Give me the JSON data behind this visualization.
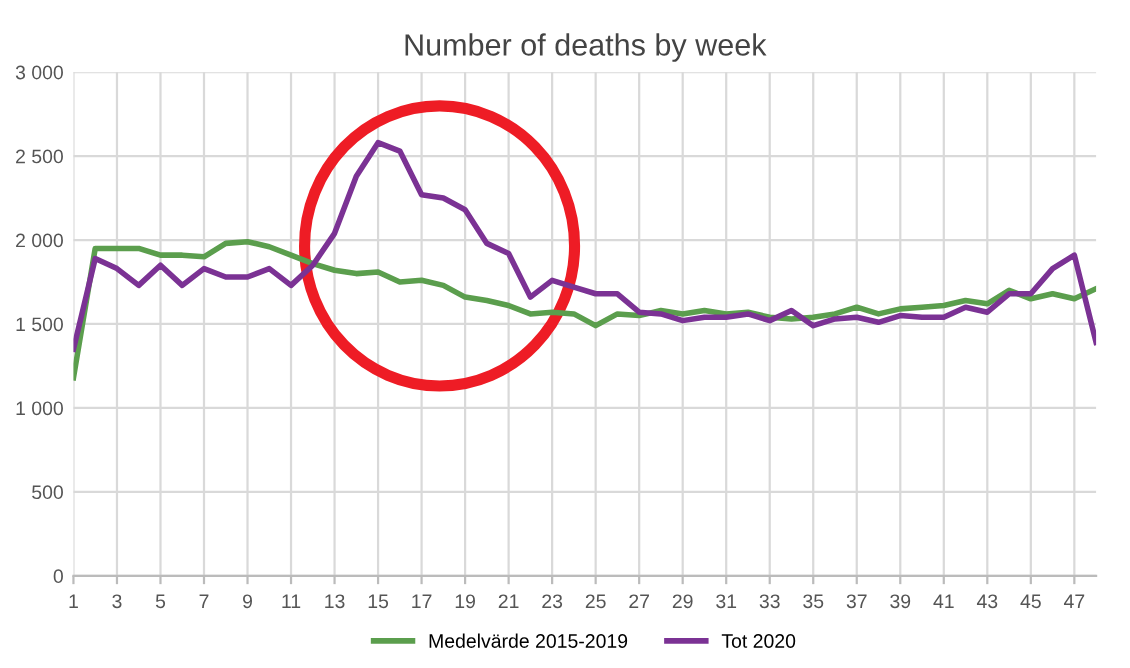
{
  "chart_data": {
    "type": "line",
    "title": "Number of deaths by week",
    "x": [
      1,
      2,
      3,
      4,
      5,
      6,
      7,
      8,
      9,
      10,
      11,
      12,
      13,
      14,
      15,
      16,
      17,
      18,
      19,
      20,
      21,
      22,
      23,
      24,
      25,
      26,
      27,
      28,
      29,
      30,
      31,
      32,
      33,
      34,
      35,
      36,
      37,
      38,
      39,
      40,
      41,
      42,
      43,
      44,
      45,
      46,
      47,
      48
    ],
    "series": [
      {
        "name": "Medelvärde 2015-2019",
        "color": "#5b9e4d",
        "values": [
          1180,
          1950,
          1950,
          1950,
          1910,
          1910,
          1900,
          1980,
          1990,
          1960,
          1910,
          1860,
          1820,
          1800,
          1810,
          1750,
          1760,
          1730,
          1660,
          1640,
          1610,
          1560,
          1570,
          1560,
          1490,
          1560,
          1550,
          1580,
          1560,
          1580,
          1560,
          1570,
          1540,
          1530,
          1540,
          1560,
          1600,
          1560,
          1590,
          1600,
          1610,
          1640,
          1620,
          1700,
          1650,
          1680,
          1650,
          1710
        ]
      },
      {
        "name": "Tot 2020",
        "color": "#7b3294",
        "values": [
          1350,
          1890,
          1830,
          1730,
          1850,
          1730,
          1830,
          1780,
          1780,
          1830,
          1730,
          1850,
          2040,
          2380,
          2580,
          2530,
          2270,
          2250,
          2180,
          1980,
          1920,
          1660,
          1760,
          1720,
          1680,
          1680,
          1570,
          1560,
          1520,
          1540,
          1540,
          1560,
          1520,
          1580,
          1490,
          1530,
          1540,
          1510,
          1550,
          1540,
          1540,
          1600,
          1570,
          1680,
          1680,
          1830,
          1910,
          1390
        ]
      }
    ],
    "xlim": [
      1,
      48
    ],
    "xticks": [
      1,
      3,
      5,
      7,
      9,
      11,
      13,
      15,
      17,
      19,
      21,
      23,
      25,
      27,
      29,
      31,
      33,
      35,
      37,
      39,
      41,
      43,
      45,
      47
    ],
    "ylim": [
      0,
      3000
    ],
    "yticks": [
      {
        "value": 0,
        "label": "0"
      },
      {
        "value": 500,
        "label": "500"
      },
      {
        "value": 1000,
        "label": "1 000"
      },
      {
        "value": 1500,
        "label": "1 500"
      },
      {
        "value": 2000,
        "label": "2 000"
      },
      {
        "value": 2500,
        "label": "2 500"
      },
      {
        "value": 3000,
        "label": "3 000"
      }
    ],
    "grid": true,
    "legend": "bottom",
    "marker": "none",
    "line_style": "solid"
  }
}
